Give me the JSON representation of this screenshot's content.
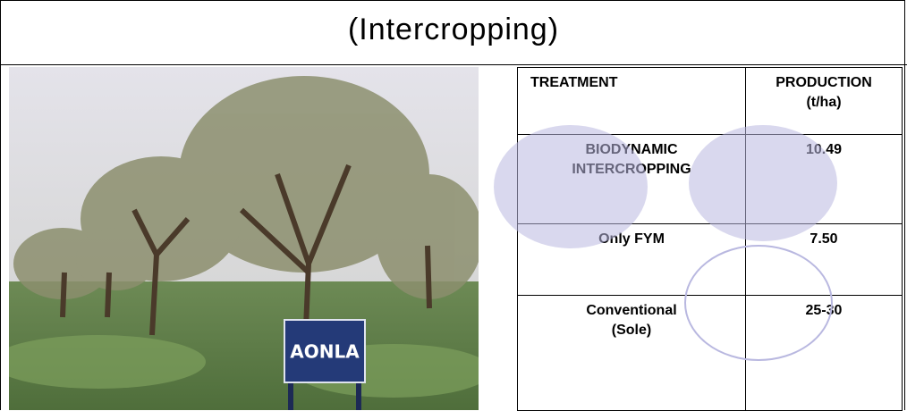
{
  "title": "(Intercropping)",
  "image": {
    "sign_text": "AONLA"
  },
  "table": {
    "header": [
      "TREATMENT",
      "PRODUCTION (t/ha)"
    ],
    "rows": [
      [
        "BIODYNAMIC INTERCROPPING",
        "10.49"
      ],
      [
        "Only FYM",
        "7.50"
      ],
      [
        "Conventional (Sole)",
        "25-30"
      ]
    ]
  }
}
